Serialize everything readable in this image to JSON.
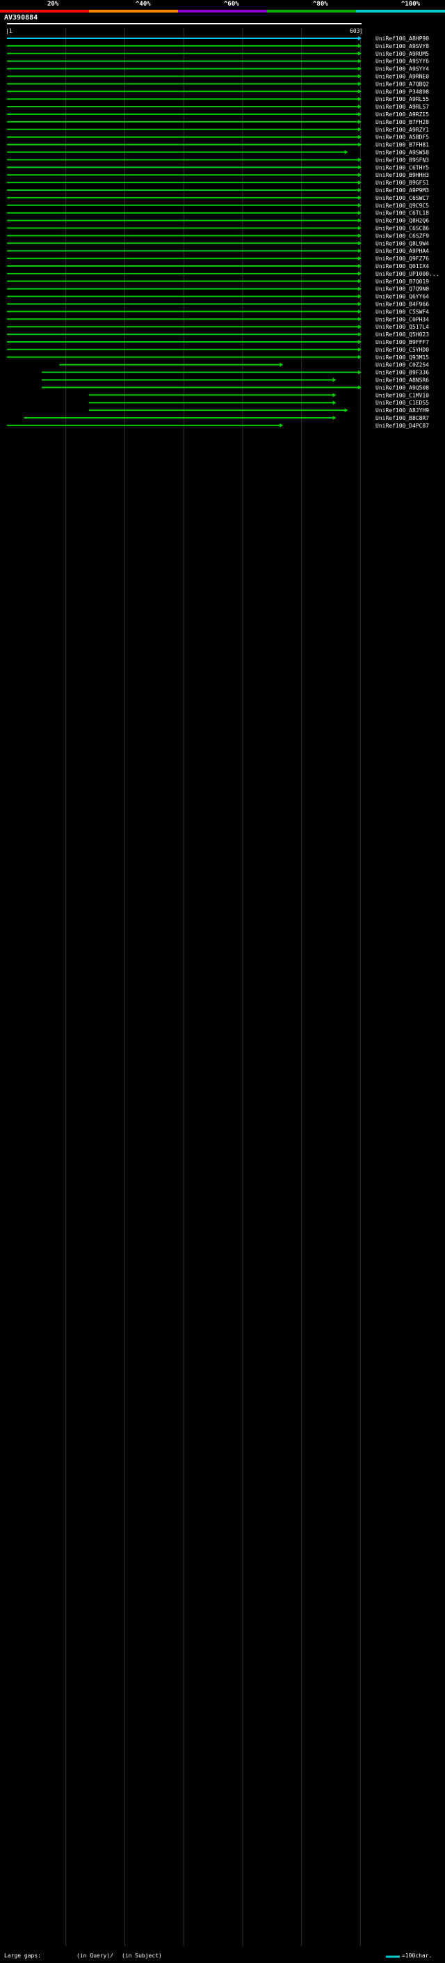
{
  "title": "AV390884",
  "scale_labels": [
    "20%",
    "^40%",
    "^60%",
    "^80%",
    "^100%"
  ],
  "scale_colors": [
    "#ff0000",
    "#ff8800",
    "#8800cc",
    "#00aa00",
    "#00cccc"
  ],
  "axis": {
    "start_label": "|1",
    "end_label": "603|",
    "length": 603
  },
  "legend": {
    "gaps_label": "Large gaps:",
    "in_query_label": "(in Query)/",
    "in_subject_label": "(in Subject)",
    "scale_bar_label": "=100char."
  },
  "chart_data": {
    "type": "alignment-overview",
    "query_length": 603,
    "rows": [
      {
        "id": "UniRef100_A8HP90",
        "start": 1,
        "end": 603,
        "color": "cyan"
      },
      {
        "id": "UniRef100_A9SVY8",
        "start": 1,
        "end": 603,
        "color": "green"
      },
      {
        "id": "UniRef100_A9RUM5",
        "start": 1,
        "end": 603,
        "color": "green"
      },
      {
        "id": "UniRef100_A9SYY6",
        "start": 1,
        "end": 603,
        "color": "green"
      },
      {
        "id": "UniRef100_A9SYY4",
        "start": 1,
        "end": 603,
        "color": "green"
      },
      {
        "id": "UniRef100_A9RNE0",
        "start": 1,
        "end": 603,
        "color": "green"
      },
      {
        "id": "UniRef100_A7QBQ2",
        "start": 1,
        "end": 603,
        "color": "green"
      },
      {
        "id": "UniRef100_P34898",
        "start": 1,
        "end": 603,
        "color": "green"
      },
      {
        "id": "UniRef100_A9RL55",
        "start": 1,
        "end": 603,
        "color": "green"
      },
      {
        "id": "UniRef100_A9RLS7",
        "start": 1,
        "end": 603,
        "color": "green"
      },
      {
        "id": "UniRef100_A9RZI5",
        "start": 1,
        "end": 603,
        "color": "green"
      },
      {
        "id": "UniRef100_B7FH28",
        "start": 1,
        "end": 603,
        "color": "green"
      },
      {
        "id": "UniRef100_A9RZY1",
        "start": 1,
        "end": 603,
        "color": "green"
      },
      {
        "id": "UniRef100_A5BDF5",
        "start": 1,
        "end": 603,
        "color": "green"
      },
      {
        "id": "UniRef100_B7FH81",
        "start": 1,
        "end": 603,
        "color": "green"
      },
      {
        "id": "UniRef100_A9SW58",
        "start": 1,
        "end": 580,
        "color": "green"
      },
      {
        "id": "UniRef100_B9SFN3",
        "start": 1,
        "end": 603,
        "color": "green"
      },
      {
        "id": "UniRef100_C6THY5",
        "start": 1,
        "end": 603,
        "color": "green"
      },
      {
        "id": "UniRef100_B9HHH3",
        "start": 1,
        "end": 603,
        "color": "green"
      },
      {
        "id": "UniRef100_B9GFS1",
        "start": 1,
        "end": 603,
        "color": "green"
      },
      {
        "id": "UniRef100_A9P9M3",
        "start": 1,
        "end": 603,
        "color": "green"
      },
      {
        "id": "UniRef100_C6SWC7",
        "start": 1,
        "end": 603,
        "color": "green"
      },
      {
        "id": "UniRef100_Q9C9C5",
        "start": 1,
        "end": 603,
        "color": "green"
      },
      {
        "id": "UniRef100_C6TL18",
        "start": 1,
        "end": 603,
        "color": "green"
      },
      {
        "id": "UniRef100_Q8H2Q6",
        "start": 1,
        "end": 603,
        "color": "green"
      },
      {
        "id": "UniRef100_C6SCB6",
        "start": 1,
        "end": 603,
        "color": "green"
      },
      {
        "id": "UniRef100_C6SZF9",
        "start": 1,
        "end": 603,
        "color": "green"
      },
      {
        "id": "UniRef100_Q8L9W4",
        "start": 1,
        "end": 603,
        "color": "green"
      },
      {
        "id": "UniRef100_A9PHA4",
        "start": 1,
        "end": 603,
        "color": "green"
      },
      {
        "id": "UniRef100_Q9FZ76",
        "start": 1,
        "end": 603,
        "color": "green"
      },
      {
        "id": "UniRef100_Q01IX4",
        "start": 1,
        "end": 603,
        "color": "green"
      },
      {
        "id": "UniRef100_UP1000...",
        "start": 1,
        "end": 603,
        "color": "green"
      },
      {
        "id": "UniRef100_B7Q019",
        "start": 1,
        "end": 603,
        "color": "green"
      },
      {
        "id": "UniRef100_Q7Q9N0",
        "start": 1,
        "end": 603,
        "color": "green"
      },
      {
        "id": "UniRef100_Q6YY64",
        "start": 1,
        "end": 603,
        "color": "green"
      },
      {
        "id": "UniRef100_B4F966",
        "start": 1,
        "end": 603,
        "color": "green"
      },
      {
        "id": "UniRef100_C5SWF4",
        "start": 1,
        "end": 603,
        "color": "green"
      },
      {
        "id": "UniRef100_C0PH34",
        "start": 1,
        "end": 603,
        "color": "green"
      },
      {
        "id": "UniRef100_Q517L4",
        "start": 1,
        "end": 603,
        "color": "green"
      },
      {
        "id": "UniRef100_Q5H023",
        "start": 1,
        "end": 603,
        "color": "green"
      },
      {
        "id": "UniRef100_B9FFF7",
        "start": 1,
        "end": 603,
        "color": "green"
      },
      {
        "id": "UniRef100_C5YHD0",
        "start": 1,
        "end": 603,
        "color": "green"
      },
      {
        "id": "UniRef100_Q93M15",
        "start": 1,
        "end": 603,
        "color": "green"
      },
      {
        "id": "UniRef100_C0Z2S4",
        "start": 90,
        "end": 470,
        "color": "green"
      },
      {
        "id": "UniRef100_B9F336",
        "start": 60,
        "end": 603,
        "color": "green"
      },
      {
        "id": "UniRef100_A8NSR6",
        "start": 60,
        "end": 560,
        "color": "green"
      },
      {
        "id": "UniRef100_A9Q508",
        "start": 60,
        "end": 603,
        "color": "green"
      },
      {
        "id": "UniRef100_C1MV10",
        "start": 140,
        "end": 560,
        "color": "green"
      },
      {
        "id": "UniRef100_C1EDS5",
        "start": 140,
        "end": 560,
        "color": "green"
      },
      {
        "id": "UniRef100_A8JYH9",
        "start": 140,
        "end": 580,
        "color": "green"
      },
      {
        "id": "UniRef100_B8C8R7",
        "start": 30,
        "end": 560,
        "color": "green"
      },
      {
        "id": "UniRef100_D4PC87",
        "start": 1,
        "end": 470,
        "color": "green"
      }
    ],
    "row_colors": {
      "cyan": "#00ccff",
      "green": "#00cc00",
      "magenta": "#ff44ff"
    }
  }
}
